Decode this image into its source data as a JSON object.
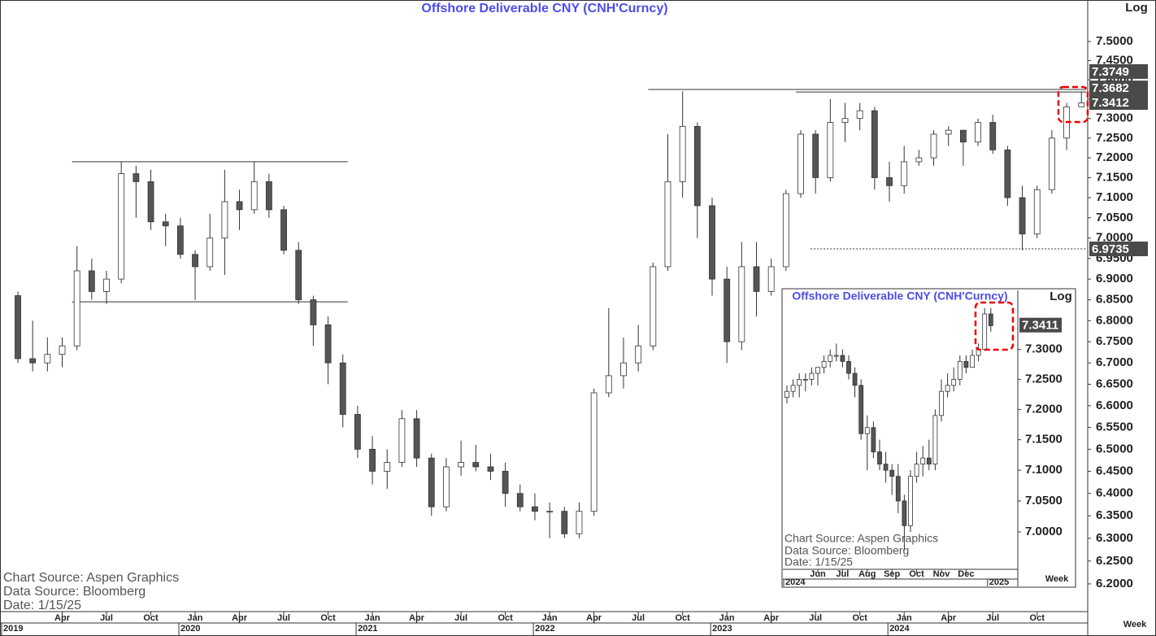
{
  "chart_data": [
    {
      "type": "candlestick",
      "title": "Offshore Deliverable CNY (CNH'Curncy)",
      "log": true,
      "scale_label": "Log",
      "period_label": "Week",
      "notes": [
        "Chart Source:  Aspen  Graphics",
        "Data  Source:  Bloomberg",
        "Date:     1/15/25"
      ],
      "x": [
        "2019-01",
        "2019-02",
        "2019-03",
        "2019-04",
        "2019-05",
        "2019-06",
        "2019-07",
        "2019-08",
        "2019-09",
        "2019-10",
        "2019-11",
        "2019-12",
        "2020-01",
        "2020-02",
        "2020-03",
        "2020-04",
        "2020-05",
        "2020-06",
        "2020-07",
        "2020-08",
        "2020-09",
        "2020-10",
        "2020-11",
        "2020-12",
        "2021-01",
        "2021-02",
        "2021-03",
        "2021-04",
        "2021-05",
        "2021-06",
        "2021-07",
        "2021-08",
        "2021-09",
        "2021-10",
        "2021-11",
        "2021-12",
        "2022-01",
        "2022-02",
        "2022-03",
        "2022-04",
        "2022-05",
        "2022-06",
        "2022-07",
        "2022-08",
        "2022-09",
        "2022-10",
        "2022-11",
        "2022-12",
        "2023-01",
        "2023-02",
        "2023-03",
        "2023-04",
        "2023-05",
        "2023-06",
        "2023-07",
        "2023-08",
        "2023-09",
        "2023-10",
        "2023-11",
        "2023-12",
        "2024-01",
        "2024-02",
        "2024-03",
        "2024-04",
        "2024-05",
        "2024-06",
        "2024-07",
        "2024-08",
        "2024-09",
        "2024-10",
        "2024-11",
        "2024-12",
        "2025-01"
      ],
      "open": [
        6.86,
        6.71,
        6.7,
        6.72,
        6.74,
        6.92,
        6.87,
        6.9,
        7.16,
        7.14,
        7.04,
        7.03,
        6.96,
        6.93,
        7.0,
        7.09,
        7.07,
        7.14,
        7.07,
        6.97,
        6.85,
        6.79,
        6.7,
        6.58,
        6.5,
        6.45,
        6.47,
        6.57,
        6.48,
        6.37,
        6.46,
        6.47,
        6.46,
        6.45,
        6.4,
        6.37,
        6.36,
        6.36,
        6.31,
        6.36,
        6.63,
        6.67,
        6.7,
        6.74,
        6.93,
        7.14,
        7.28,
        7.08,
        6.9,
        6.75,
        6.93,
        6.87,
        6.93,
        7.11,
        7.26,
        7.15,
        7.29,
        7.3,
        7.32,
        7.15,
        7.13,
        7.19,
        7.2,
        7.26,
        7.27,
        7.24,
        7.29,
        7.22,
        7.1,
        7.01,
        7.12,
        7.25,
        7.33
      ],
      "high": [
        6.87,
        6.8,
        6.76,
        6.76,
        6.98,
        6.95,
        6.92,
        7.19,
        7.18,
        7.17,
        7.06,
        7.05,
        6.97,
        7.06,
        7.17,
        7.12,
        7.19,
        7.16,
        7.08,
        6.99,
        6.86,
        6.81,
        6.72,
        6.6,
        6.53,
        6.5,
        6.59,
        6.59,
        6.49,
        6.48,
        6.52,
        6.51,
        6.49,
        6.47,
        6.42,
        6.4,
        6.38,
        6.37,
        6.38,
        6.64,
        6.83,
        6.76,
        6.79,
        6.94,
        7.26,
        7.37,
        7.29,
        7.1,
        6.93,
        6.99,
        6.99,
        6.95,
        7.12,
        7.27,
        7.27,
        7.35,
        7.34,
        7.34,
        7.33,
        7.19,
        7.23,
        7.22,
        7.27,
        7.28,
        7.27,
        7.3,
        7.31,
        7.23,
        7.13,
        7.13,
        7.27,
        7.34,
        7.37
      ],
      "low": [
        6.7,
        6.68,
        6.68,
        6.69,
        6.73,
        6.85,
        6.84,
        6.89,
        7.05,
        7.02,
        6.98,
        6.95,
        6.85,
        6.92,
        6.91,
        7.02,
        7.06,
        7.05,
        6.96,
        6.84,
        6.74,
        6.65,
        6.55,
        6.48,
        6.42,
        6.41,
        6.46,
        6.46,
        6.35,
        6.36,
        6.44,
        6.45,
        6.43,
        6.37,
        6.36,
        6.34,
        6.3,
        6.3,
        6.3,
        6.35,
        6.62,
        6.64,
        6.68,
        6.73,
        6.92,
        7.1,
        7.0,
        6.86,
        6.7,
        6.73,
        6.81,
        6.86,
        6.92,
        7.1,
        7.11,
        7.14,
        7.24,
        7.27,
        7.12,
        7.09,
        7.11,
        7.18,
        7.18,
        7.23,
        7.18,
        7.23,
        7.21,
        7.08,
        6.97,
        7.0,
        7.11,
        7.22,
        7.33
      ],
      "close": [
        6.71,
        6.7,
        6.72,
        6.74,
        6.92,
        6.87,
        6.9,
        7.16,
        7.14,
        7.04,
        7.03,
        6.96,
        6.93,
        7.0,
        7.09,
        7.07,
        7.14,
        7.07,
        6.97,
        6.85,
        6.79,
        6.7,
        6.58,
        6.5,
        6.45,
        6.47,
        6.57,
        6.48,
        6.37,
        6.46,
        6.47,
        6.46,
        6.45,
        6.4,
        6.37,
        6.36,
        6.36,
        6.31,
        6.36,
        6.63,
        6.67,
        6.7,
        6.74,
        6.93,
        7.14,
        7.28,
        7.08,
        6.9,
        6.75,
        6.93,
        6.87,
        6.93,
        7.11,
        7.26,
        7.15,
        7.29,
        7.3,
        7.32,
        7.15,
        7.13,
        7.19,
        7.2,
        7.26,
        7.27,
        7.24,
        7.29,
        7.22,
        7.1,
        7.01,
        7.12,
        7.25,
        7.33,
        7.34
      ],
      "ylim": [
        6.14,
        7.61
      ],
      "yticks": [
        {
          "value": 6.2,
          "label": "6.2000"
        },
        {
          "value": 6.25,
          "label": "6.2500"
        },
        {
          "value": 6.3,
          "label": "6.3000"
        },
        {
          "value": 6.35,
          "label": "6.3500"
        },
        {
          "value": 6.4,
          "label": "6.4000"
        },
        {
          "value": 6.45,
          "label": "6.4500"
        },
        {
          "value": 6.5,
          "label": "6.5000"
        },
        {
          "value": 6.55,
          "label": "6.5500"
        },
        {
          "value": 6.6,
          "label": "6.6000"
        },
        {
          "value": 6.65,
          "label": "6.6500"
        },
        {
          "value": 6.7,
          "label": "6.7000"
        },
        {
          "value": 6.75,
          "label": "6.7500"
        },
        {
          "value": 6.8,
          "label": "6.8000"
        },
        {
          "value": 6.85,
          "label": "6.8500"
        },
        {
          "value": 6.9,
          "label": "6.9000"
        },
        {
          "value": 6.95,
          "label": "6.9500"
        },
        {
          "value": 7.0,
          "label": "7.0000"
        },
        {
          "value": 7.05,
          "label": "7.0500"
        },
        {
          "value": 7.1,
          "label": "7.1000"
        },
        {
          "value": 7.15,
          "label": "7.1500"
        },
        {
          "value": 7.2,
          "label": "7.2000"
        },
        {
          "value": 7.25,
          "label": "7.2500"
        },
        {
          "value": 7.3,
          "label": "7.3000"
        },
        {
          "value": 7.35,
          "label": "7.3500"
        },
        {
          "value": 7.4,
          "label": "7.4000"
        },
        {
          "value": 7.45,
          "label": "7.4500"
        },
        {
          "value": 7.5,
          "label": "7.5000"
        }
      ],
      "xticks": [
        {
          "value": "2019-04",
          "label": "Apr"
        },
        {
          "value": "2019-07",
          "label": "Jul"
        },
        {
          "value": "2019-10",
          "label": "Oct"
        },
        {
          "value": "2020-01",
          "label": "Jan"
        },
        {
          "value": "2020-04",
          "label": "Apr"
        },
        {
          "value": "2020-07",
          "label": "Jul"
        },
        {
          "value": "2020-10",
          "label": "Oct"
        },
        {
          "value": "2021-01",
          "label": "Jan"
        },
        {
          "value": "2021-04",
          "label": "Apr"
        },
        {
          "value": "2021-07",
          "label": "Jul"
        },
        {
          "value": "2021-10",
          "label": "Oct"
        },
        {
          "value": "2022-01",
          "label": "Jan"
        },
        {
          "value": "2022-04",
          "label": "Apr"
        },
        {
          "value": "2022-07",
          "label": "Jul"
        },
        {
          "value": "2022-10",
          "label": "Oct"
        },
        {
          "value": "2023-01",
          "label": "Jan"
        },
        {
          "value": "2023-04",
          "label": "Apr"
        },
        {
          "value": "2023-07",
          "label": "Jul"
        },
        {
          "value": "2023-10",
          "label": "Oct"
        },
        {
          "value": "2024-01",
          "label": "Jan"
        },
        {
          "value": "2024-04",
          "label": "Apr"
        },
        {
          "value": "2024-07",
          "label": "Jul"
        },
        {
          "value": "2024-10",
          "label": "Oct"
        }
      ],
      "xyears": [
        {
          "value": "2019-01",
          "label": "2019"
        },
        {
          "value": "2020-01",
          "label": "2020"
        },
        {
          "value": "2021-01",
          "label": "2021"
        },
        {
          "value": "2022-01",
          "label": "2022"
        },
        {
          "value": "2023-01",
          "label": "2023"
        },
        {
          "value": "2024-01",
          "label": "2024"
        }
      ],
      "levels": [
        {
          "value": 7.19,
          "from": "2019-05",
          "to": "2020-11"
        },
        {
          "value": 6.845,
          "from": "2019-05",
          "to": "2020-11"
        },
        {
          "value": 7.3749,
          "from": "2022-08",
          "to": "2025-01"
        },
        {
          "value": 7.3682,
          "from": "2023-06",
          "to": "2025-01"
        },
        {
          "value": 6.9735,
          "from": "2023-07",
          "to": "2025-01",
          "style": "dotted"
        }
      ],
      "price_labels": [
        7.3749,
        7.3682,
        7.3412,
        6.9735
      ]
    },
    {
      "type": "candlestick",
      "title": "Offshore Deliverable CNY (CNH'Curncy)",
      "log": true,
      "scale_label": "Log",
      "period_label": "Week",
      "notes": [
        "Chart Source:  Aspen  Graphics",
        "Data  Source:  Bloomberg",
        "Date:     1/15/25"
      ],
      "categories": [
        null,
        null,
        null,
        null,
        null,
        null,
        null,
        null,
        null,
        null,
        null,
        null,
        null,
        null,
        null,
        null,
        null,
        null,
        null,
        null,
        null,
        null,
        null,
        null,
        null,
        null,
        null,
        null,
        null,
        null,
        null,
        null,
        null,
        null
      ],
      "open": [
        7.22,
        7.23,
        7.24,
        7.25,
        7.25,
        7.26,
        7.27,
        7.28,
        7.29,
        7.29,
        7.28,
        7.26,
        7.24,
        7.16,
        7.17,
        7.13,
        7.11,
        7.1,
        7.09,
        7.05,
        7.01,
        7.09,
        7.11,
        7.12,
        7.11,
        7.19,
        7.23,
        7.24,
        7.25,
        7.28,
        7.27,
        7.29,
        7.3,
        7.36
      ],
      "high": [
        7.24,
        7.25,
        7.26,
        7.26,
        7.27,
        7.27,
        7.29,
        7.3,
        7.31,
        7.3,
        7.29,
        7.27,
        7.25,
        7.19,
        7.18,
        7.15,
        7.13,
        7.11,
        7.11,
        7.06,
        7.1,
        7.13,
        7.14,
        7.15,
        7.2,
        7.25,
        7.26,
        7.27,
        7.29,
        7.29,
        7.3,
        7.31,
        7.37,
        7.37
      ],
      "low": [
        7.21,
        7.22,
        7.22,
        7.23,
        7.24,
        7.24,
        7.26,
        7.27,
        7.28,
        7.27,
        7.25,
        7.22,
        7.15,
        7.1,
        7.12,
        7.1,
        7.08,
        7.06,
        7.03,
        6.97,
        7.0,
        7.08,
        7.09,
        7.1,
        7.1,
        7.18,
        7.22,
        7.23,
        7.24,
        7.26,
        7.27,
        7.28,
        7.3,
        7.33
      ],
      "close": [
        7.23,
        7.24,
        7.25,
        7.25,
        7.26,
        7.27,
        7.28,
        7.29,
        7.29,
        7.28,
        7.26,
        7.24,
        7.16,
        7.17,
        7.13,
        7.11,
        7.1,
        7.09,
        7.05,
        7.01,
        7.09,
        7.11,
        7.12,
        7.11,
        7.19,
        7.23,
        7.24,
        7.25,
        7.28,
        7.27,
        7.29,
        7.3,
        7.36,
        7.34
      ],
      "ylim": [
        6.94,
        7.4
      ],
      "yticks": [
        {
          "value": 7.0,
          "label": "7.0000"
        },
        {
          "value": 7.05,
          "label": "7.0500"
        },
        {
          "value": 7.1,
          "label": "7.1000"
        },
        {
          "value": 7.15,
          "label": "7.1500"
        },
        {
          "value": 7.2,
          "label": "7.2000"
        },
        {
          "value": 7.25,
          "label": "7.2500"
        },
        {
          "value": 7.3,
          "label": "7.3000"
        }
      ],
      "xticks": [
        {
          "value": 5,
          "label": "Jun"
        },
        {
          "value": 9,
          "label": "Jul"
        },
        {
          "value": 13,
          "label": "Aug"
        },
        {
          "value": 17,
          "label": "Sep"
        },
        {
          "value": 21,
          "label": "Oct"
        },
        {
          "value": 25,
          "label": "Nov"
        },
        {
          "value": 29,
          "label": "Dec"
        }
      ],
      "xyears": [
        {
          "value": 0,
          "label": "2024"
        },
        {
          "value": 33,
          "label": "2025"
        }
      ],
      "price_labels": [
        7.3411
      ]
    }
  ]
}
